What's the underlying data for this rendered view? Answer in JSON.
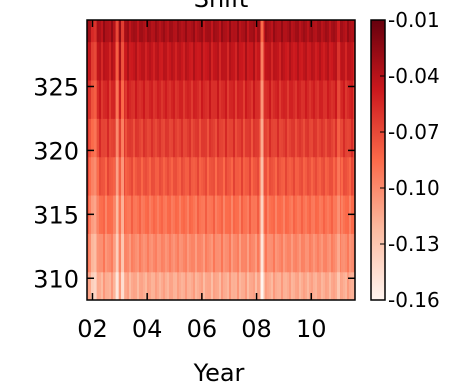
{
  "chart_data": {
    "type": "heatmap",
    "title": "Shift",
    "xlabel": "Year",
    "ylabel": "",
    "x_ticks": [
      "02",
      "04",
      "06",
      "08",
      "10"
    ],
    "x_tick_values": [
      2002,
      2004,
      2006,
      2008,
      2010
    ],
    "xlim": [
      2001.8,
      2011.6
    ],
    "y_ticks": [
      "310",
      "315",
      "320",
      "325"
    ],
    "y_tick_values": [
      310,
      315,
      320,
      325
    ],
    "ylim": [
      308.3,
      330.2
    ],
    "colorbar": {
      "ticks": [
        "-0.01",
        "-0.04",
        "-0.07",
        "-0.10",
        "-0.13",
        "-0.16"
      ],
      "tick_values": [
        -0.01,
        -0.04,
        -0.07,
        -0.1,
        -0.13,
        -0.16
      ],
      "range": [
        -0.16,
        -0.01
      ],
      "colormap": "Reds"
    },
    "rows": [
      {
        "y": 309,
        "value": -0.115
      },
      {
        "y": 312,
        "value": -0.1
      },
      {
        "y": 315,
        "value": -0.088
      },
      {
        "y": 318,
        "value": -0.076
      },
      {
        "y": 321,
        "value": -0.065
      },
      {
        "y": 324,
        "value": -0.055
      },
      {
        "y": 327,
        "value": -0.045
      },
      {
        "y": 330,
        "value": -0.035
      }
    ],
    "bright_columns": [
      {
        "x": 2002.0,
        "offset": 0.02
      },
      {
        "x": 2002.1,
        "offset": 0.025
      },
      {
        "x": 2002.9,
        "offset": 0.035
      },
      {
        "x": 2003.1,
        "offset": 0.03
      },
      {
        "x": 2008.2,
        "offset": 0.05
      },
      {
        "x": 2011.0,
        "offset": 0.015
      }
    ]
  }
}
